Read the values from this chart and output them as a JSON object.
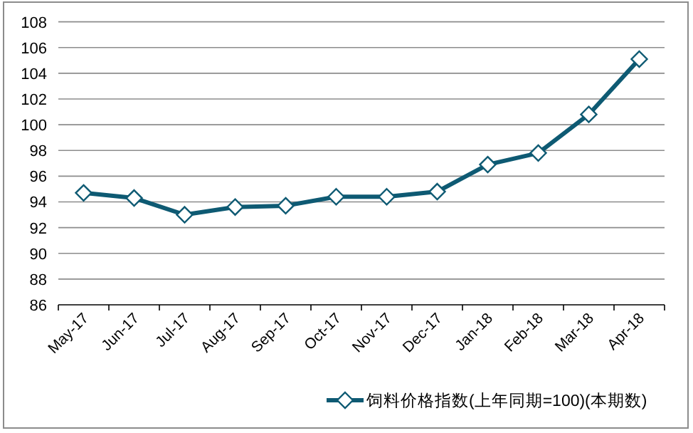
{
  "chart_data": {
    "type": "line",
    "categories": [
      "May-17",
      "Jun-17",
      "Jul-17",
      "Aug-17",
      "Sep-17",
      "Oct-17",
      "Nov-17",
      "Dec-17",
      "Jan-18",
      "Feb-18",
      "Mar-18",
      "Apr-18"
    ],
    "series": [
      {
        "name": "饲料价格指数(上年同期=100)(本期数)",
        "color": "#0e5a73",
        "values": [
          94.7,
          94.3,
          93.0,
          93.6,
          93.7,
          94.4,
          94.4,
          94.8,
          96.9,
          97.8,
          100.8,
          105.1
        ]
      }
    ],
    "ylim": [
      86,
      108
    ],
    "yticks": [
      86,
      88,
      90,
      92,
      94,
      96,
      98,
      100,
      102,
      104,
      106,
      108
    ],
    "grid": "y",
    "legend": "bottom",
    "marker": "diamond",
    "line_style": "solid"
  }
}
